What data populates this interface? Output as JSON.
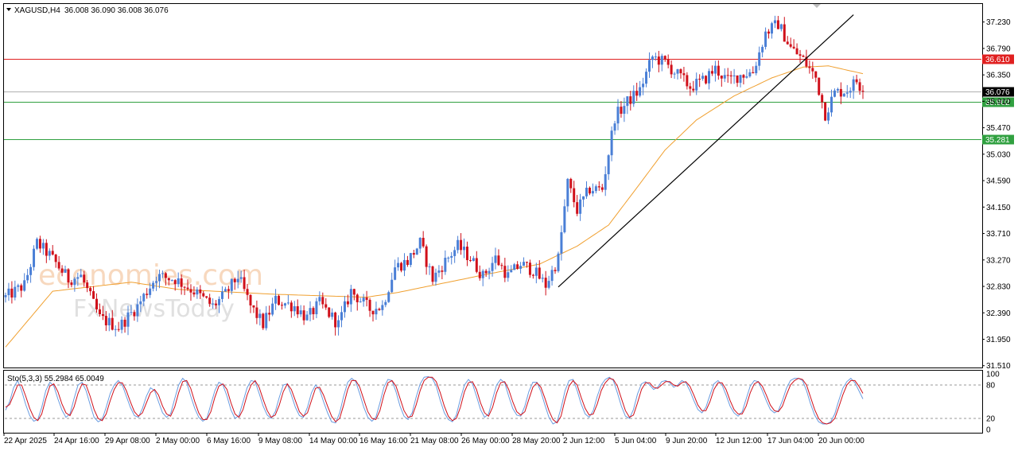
{
  "header": {
    "symbol": "XAGUSD,H4",
    "ohlc": "36.008 36.090 36.008 36.076"
  },
  "watermark": {
    "brand": "economies.com",
    "sub": "FxNewsToday"
  },
  "colors": {
    "bull": "#4a7fd6",
    "bear": "#d0101a",
    "ma": "#f0a030",
    "resistance": "#e02020",
    "support": "#30a040",
    "trendline": "#000000",
    "sto_main": "#6a9ce0",
    "sto_signal": "#d0101a"
  },
  "chart_data": [
    {
      "type": "candlestick",
      "symbol": "XAGUSD",
      "timeframe": "H4",
      "yticks": [
        "37.230",
        "36.790",
        "36.350",
        "35.910",
        "35.470",
        "35.030",
        "34.590",
        "34.150",
        "33.710",
        "33.270",
        "32.830",
        "32.390",
        "31.950",
        "31.510"
      ],
      "ylim": [
        31.48,
        37.53
      ],
      "xticks": [
        "22 Apr 2025",
        "24 Apr 16:00",
        "29 Apr 08:00",
        "2 May 00:00",
        "6 May 16:00",
        "9 May 08:00",
        "14 May 00:00",
        "16 May 16:00",
        "21 May 08:00",
        "26 May 00:00",
        "28 May 20:00",
        "2 Jun 12:00",
        "5 Jun 04:00",
        "9 Jun 20:00",
        "12 Jun 12:00",
        "17 Jun 04:00",
        "20 Jun 00:00"
      ],
      "current_price": "36.076",
      "price_path": [
        {
          "i": 0,
          "p": 32.65
        },
        {
          "i": 6,
          "p": 32.85
        },
        {
          "i": 10,
          "p": 33.55
        },
        {
          "i": 14,
          "p": 33.35
        },
        {
          "i": 20,
          "p": 32.95
        },
        {
          "i": 24,
          "p": 33.0
        },
        {
          "i": 30,
          "p": 32.3
        },
        {
          "i": 36,
          "p": 32.15
        },
        {
          "i": 42,
          "p": 32.5
        },
        {
          "i": 48,
          "p": 33.0
        },
        {
          "i": 54,
          "p": 32.95
        },
        {
          "i": 60,
          "p": 32.75
        },
        {
          "i": 66,
          "p": 32.5
        },
        {
          "i": 70,
          "p": 32.7
        },
        {
          "i": 74,
          "p": 33.0
        },
        {
          "i": 78,
          "p": 32.5
        },
        {
          "i": 82,
          "p": 32.2
        },
        {
          "i": 86,
          "p": 32.6
        },
        {
          "i": 92,
          "p": 32.5
        },
        {
          "i": 96,
          "p": 32.3
        },
        {
          "i": 100,
          "p": 32.55
        },
        {
          "i": 106,
          "p": 32.2
        },
        {
          "i": 110,
          "p": 32.75
        },
        {
          "i": 116,
          "p": 32.45
        },
        {
          "i": 120,
          "p": 32.5
        },
        {
          "i": 124,
          "p": 33.15
        },
        {
          "i": 128,
          "p": 33.25
        },
        {
          "i": 132,
          "p": 33.55
        },
        {
          "i": 136,
          "p": 32.95
        },
        {
          "i": 140,
          "p": 33.25
        },
        {
          "i": 144,
          "p": 33.5
        },
        {
          "i": 148,
          "p": 33.3
        },
        {
          "i": 152,
          "p": 33.0
        },
        {
          "i": 156,
          "p": 33.3
        },
        {
          "i": 160,
          "p": 33.0
        },
        {
          "i": 164,
          "p": 33.2
        },
        {
          "i": 168,
          "p": 33.1
        },
        {
          "i": 172,
          "p": 32.85
        },
        {
          "i": 176,
          "p": 33.3
        },
        {
          "i": 179,
          "p": 34.55
        },
        {
          "i": 182,
          "p": 34.1
        },
        {
          "i": 186,
          "p": 34.45
        },
        {
          "i": 190,
          "p": 34.45
        },
        {
          "i": 194,
          "p": 35.65
        },
        {
          "i": 198,
          "p": 35.9
        },
        {
          "i": 202,
          "p": 36.1
        },
        {
          "i": 206,
          "p": 36.65
        },
        {
          "i": 210,
          "p": 36.55
        },
        {
          "i": 214,
          "p": 36.35
        },
        {
          "i": 218,
          "p": 36.15
        },
        {
          "i": 222,
          "p": 36.25
        },
        {
          "i": 226,
          "p": 36.45
        },
        {
          "i": 230,
          "p": 36.25
        },
        {
          "i": 234,
          "p": 36.35
        },
        {
          "i": 238,
          "p": 36.4
        },
        {
          "i": 242,
          "p": 37.05
        },
        {
          "i": 246,
          "p": 37.2
        },
        {
          "i": 250,
          "p": 36.8
        },
        {
          "i": 254,
          "p": 36.6
        },
        {
          "i": 258,
          "p": 36.3
        },
        {
          "i": 261,
          "p": 35.7
        },
        {
          "i": 264,
          "p": 36.05
        },
        {
          "i": 268,
          "p": 36.1
        },
        {
          "i": 271,
          "p": 36.25
        },
        {
          "i": 273,
          "p": 36.076
        }
      ],
      "moving_average": [
        {
          "i": 0,
          "p": 31.82
        },
        {
          "i": 15,
          "p": 32.75
        },
        {
          "i": 40,
          "p": 32.9
        },
        {
          "i": 55,
          "p": 32.78
        },
        {
          "i": 85,
          "p": 32.7
        },
        {
          "i": 115,
          "p": 32.65
        },
        {
          "i": 125,
          "p": 32.73
        },
        {
          "i": 155,
          "p": 33.05
        },
        {
          "i": 170,
          "p": 33.2
        },
        {
          "i": 182,
          "p": 33.5
        },
        {
          "i": 192,
          "p": 33.85
        },
        {
          "i": 200,
          "p": 34.4
        },
        {
          "i": 210,
          "p": 35.1
        },
        {
          "i": 220,
          "p": 35.6
        },
        {
          "i": 232,
          "p": 36.0
        },
        {
          "i": 244,
          "p": 36.3
        },
        {
          "i": 254,
          "p": 36.48
        },
        {
          "i": 262,
          "p": 36.5
        },
        {
          "i": 273,
          "p": 36.37
        }
      ],
      "levels": [
        {
          "price": 36.61,
          "label": "36.610",
          "role": "resistance"
        },
        {
          "price": 35.902,
          "label": "35.902",
          "role": "support"
        },
        {
          "price": 35.281,
          "label": "35.281",
          "role": "support"
        }
      ],
      "trendline": {
        "from": {
          "i": 176,
          "p": 32.82
        },
        "to": {
          "i": 270,
          "p": 37.35
        }
      }
    },
    {
      "type": "line",
      "indicator": "stochastic",
      "label": "Sto(5,3,3) 55.2984 65.0049",
      "yticks": [
        "100",
        "80",
        "20",
        "0"
      ],
      "ylim": [
        0,
        100
      ],
      "levels": [
        80,
        20
      ],
      "main": [
        35,
        50,
        75,
        88,
        70,
        45,
        25,
        15,
        18,
        40,
        70,
        85,
        78,
        55,
        35,
        22,
        28,
        55,
        80,
        85,
        70,
        45,
        22,
        14,
        18,
        40,
        65,
        80,
        88,
        80,
        60,
        40,
        25,
        22,
        38,
        60,
        75,
        70,
        50,
        30,
        22,
        28,
        55,
        80,
        92,
        85,
        60,
        38,
        22,
        15,
        20,
        45,
        70,
        85,
        80,
        60,
        35,
        20,
        25,
        50,
        75,
        88,
        86,
        65,
        42,
        26,
        20,
        32,
        58,
        80,
        82,
        62,
        40,
        25,
        22,
        40,
        66,
        80,
        72,
        50,
        30,
        14,
        12,
        30,
        60,
        85,
        92,
        86,
        64,
        40,
        22,
        15,
        22,
        48,
        76,
        90,
        88,
        68,
        42,
        24,
        18,
        30,
        58,
        82,
        94,
        95,
        92,
        78,
        52,
        30,
        18,
        14,
        26,
        55,
        80,
        90,
        82,
        60,
        36,
        22,
        28,
        55,
        80,
        90,
        84,
        60,
        38,
        26,
        24,
        42,
        68,
        85,
        85,
        68,
        44,
        22,
        10,
        14,
        38,
        70,
        88,
        90,
        70,
        46,
        28,
        22,
        34,
        60,
        80,
        90,
        94,
        88,
        66,
        42,
        24,
        20,
        36,
        64,
        82,
        86,
        80,
        72,
        76,
        86,
        88,
        84,
        76,
        80,
        88,
        84,
        70,
        52,
        36,
        30,
        40,
        62,
        82,
        88,
        80,
        62,
        42,
        30,
        24,
        32,
        55,
        78,
        88,
        86,
        70,
        52,
        36,
        30,
        34,
        52,
        74,
        88,
        92,
        92,
        88,
        70,
        46,
        26,
        14,
        10,
        10,
        14,
        28,
        52,
        74,
        86,
        92,
        84,
        70,
        55
      ],
      "signal": [
        40,
        45,
        62,
        80,
        80,
        60,
        38,
        22,
        16,
        28,
        55,
        78,
        82,
        68,
        46,
        30,
        25,
        40,
        65,
        82,
        80,
        60,
        36,
        20,
        16,
        28,
        52,
        72,
        84,
        84,
        70,
        50,
        32,
        24,
        30,
        48,
        66,
        72,
        62,
        42,
        28,
        24,
        40,
        66,
        86,
        88,
        74,
        50,
        30,
        18,
        18,
        32,
        58,
        78,
        82,
        72,
        48,
        28,
        22,
        36,
        62,
        80,
        88,
        76,
        54,
        34,
        22,
        26,
        44,
        68,
        82,
        72,
        52,
        32,
        24,
        30,
        52,
        74,
        76,
        62,
        42,
        24,
        14,
        20,
        44,
        72,
        88,
        88,
        76,
        54,
        32,
        20,
        18,
        34,
        62,
        84,
        88,
        78,
        56,
        34,
        22,
        24,
        44,
        70,
        88,
        94,
        94,
        86,
        66,
        42,
        24,
        16,
        20,
        40,
        68,
        84,
        86,
        72,
        48,
        30,
        24,
        40,
        66,
        84,
        86,
        72,
        50,
        32,
        26,
        32,
        54,
        76,
        84,
        76,
        56,
        34,
        18,
        12,
        24,
        54,
        78,
        88,
        80,
        58,
        38,
        26,
        28,
        46,
        70,
        84,
        92,
        90,
        78,
        56,
        34,
        22,
        26,
        48,
        72,
        84,
        84,
        76,
        74,
        80,
        86,
        86,
        80,
        78,
        84,
        86,
        78,
        62,
        44,
        34,
        34,
        50,
        72,
        84,
        84,
        72,
        52,
        36,
        28,
        28,
        42,
        66,
        82,
        86,
        78,
        62,
        44,
        34,
        32,
        42,
        62,
        80,
        88,
        92,
        90,
        80,
        58,
        36,
        20,
        12,
        10,
        12,
        20,
        40,
        62,
        80,
        88,
        88,
        78,
        65
      ]
    }
  ]
}
